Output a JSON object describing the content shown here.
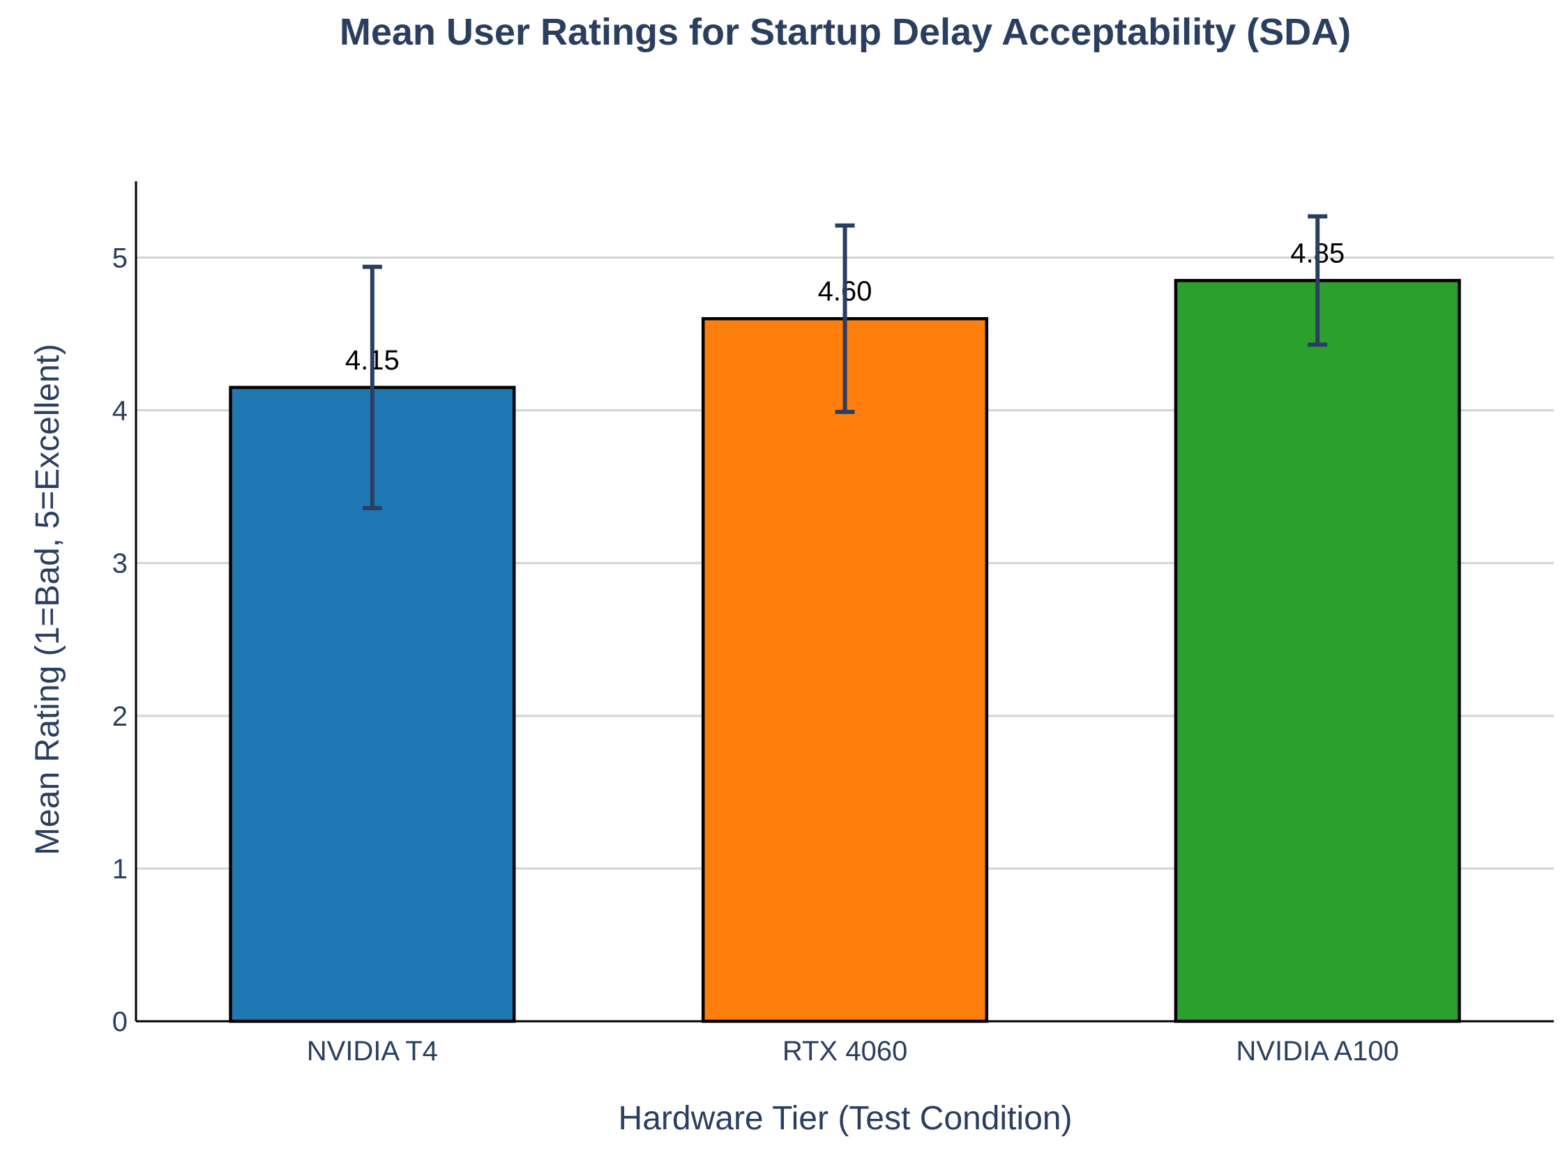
{
  "chart_data": {
    "type": "bar",
    "title": "Mean User Ratings for Startup Delay Acceptability (SDA)",
    "xlabel": "Hardware Tier (Test Condition)",
    "ylabel": "Mean Rating (1=Bad, 5=Excellent)",
    "categories": [
      "NVIDIA T4",
      "RTX 4060",
      "NVIDIA A100"
    ],
    "values": [
      4.15,
      4.6,
      4.85
    ],
    "data_labels": [
      "4.15",
      "4.60",
      "4.85"
    ],
    "error": [
      0.79,
      0.61,
      0.42
    ],
    "colors": [
      "#1f77b4",
      "#ff7f0e",
      "#2ca02c"
    ],
    "bar_edge_color": "#000000",
    "error_bar_color": "#2a3f5f",
    "ylim": [
      0,
      5.5
    ],
    "yticks": [
      0,
      1,
      2,
      3,
      4,
      5
    ],
    "grid": "horizontal",
    "legend": "none"
  }
}
